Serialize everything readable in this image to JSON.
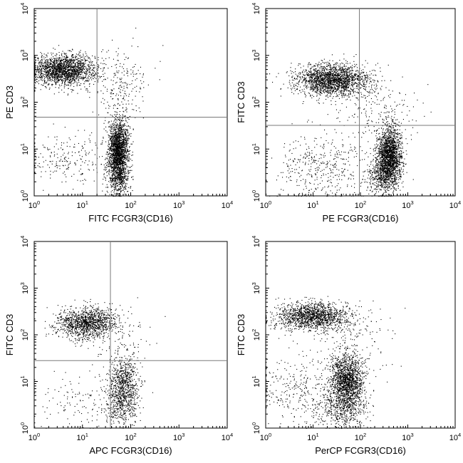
{
  "figure": {
    "panel_count": 4
  },
  "chart_data": [
    {
      "type": "scatter",
      "title": "",
      "xlabel": "FITC FCGR3(CD16)",
      "ylabel": "PE CD3",
      "xscale": "log",
      "yscale": "log",
      "xlim": [
        1,
        10000
      ],
      "ylim": [
        1,
        10000
      ],
      "x_ticks": [
        1,
        10,
        100,
        1000,
        10000
      ],
      "y_ticks": [
        1,
        10,
        100,
        1000,
        10000
      ],
      "x_tick_labels": [
        {
          "base": "10",
          "exp": "0"
        },
        {
          "base": "10",
          "exp": "1"
        },
        {
          "base": "10",
          "exp": "2"
        },
        {
          "base": "10",
          "exp": "3"
        },
        {
          "base": "10",
          "exp": "4"
        }
      ],
      "y_tick_labels": [
        {
          "base": "10",
          "exp": "0"
        },
        {
          "base": "10",
          "exp": "1"
        },
        {
          "base": "10",
          "exp": "2"
        },
        {
          "base": "10",
          "exp": "3"
        },
        {
          "base": "10",
          "exp": "4"
        }
      ],
      "gate": {
        "x": 20,
        "y": 48
      },
      "grid": false,
      "legend": "none",
      "point_color": "#000000",
      "populations": [
        {
          "center": [
            4,
            500
          ],
          "spread": [
            0.33,
            0.16
          ],
          "points": 1900
        },
        {
          "center": [
            55,
            10
          ],
          "spread": [
            0.1,
            0.3
          ],
          "points": 1800
        },
        {
          "center": [
            55,
            2.5
          ],
          "spread": [
            0.12,
            0.22
          ],
          "points": 500
        },
        {
          "center": [
            5,
            6
          ],
          "spread": [
            0.45,
            0.3
          ],
          "points": 230
        },
        {
          "center": [
            60,
            200
          ],
          "spread": [
            0.3,
            0.45
          ],
          "points": 260
        }
      ]
    },
    {
      "type": "scatter",
      "title": "",
      "xlabel": "PE FCGR3(CD16)",
      "ylabel": "FITC CD3",
      "xscale": "log",
      "yscale": "log",
      "xlim": [
        1,
        10000
      ],
      "ylim": [
        1,
        10000
      ],
      "x_ticks": [
        1,
        10,
        100,
        1000,
        10000
      ],
      "y_ticks": [
        1,
        10,
        100,
        1000,
        10000
      ],
      "x_tick_labels": [
        {
          "base": "10",
          "exp": "0"
        },
        {
          "base": "10",
          "exp": "1"
        },
        {
          "base": "10",
          "exp": "2"
        },
        {
          "base": "10",
          "exp": "3"
        },
        {
          "base": "10",
          "exp": "4"
        }
      ],
      "y_tick_labels": [
        {
          "base": "10",
          "exp": "0"
        },
        {
          "base": "10",
          "exp": "1"
        },
        {
          "base": "10",
          "exp": "2"
        },
        {
          "base": "10",
          "exp": "3"
        },
        {
          "base": "10",
          "exp": "4"
        }
      ],
      "gate": {
        "x": 95,
        "y": 32
      },
      "grid": false,
      "legend": "none",
      "point_color": "#000000",
      "populations": [
        {
          "center": [
            25,
            300
          ],
          "spread": [
            0.38,
            0.17
          ],
          "points": 2000
        },
        {
          "center": [
            400,
            7
          ],
          "spread": [
            0.13,
            0.3
          ],
          "points": 1800
        },
        {
          "center": [
            300,
            2.5
          ],
          "spread": [
            0.2,
            0.2
          ],
          "points": 450
        },
        {
          "center": [
            15,
            4
          ],
          "spread": [
            0.5,
            0.35
          ],
          "points": 400
        },
        {
          "center": [
            200,
            60
          ],
          "spread": [
            0.5,
            0.45
          ],
          "points": 220
        }
      ]
    },
    {
      "type": "scatter",
      "title": "",
      "xlabel": "APC FCGR3(CD16)",
      "ylabel": "FITC CD3",
      "xscale": "log",
      "yscale": "log",
      "xlim": [
        1,
        10000
      ],
      "ylim": [
        1,
        10000
      ],
      "x_ticks": [
        1,
        10,
        100,
        1000,
        10000
      ],
      "y_ticks": [
        1,
        10,
        100,
        1000,
        10000
      ],
      "x_tick_labels": [
        {
          "base": "10",
          "exp": "0"
        },
        {
          "base": "10",
          "exp": "1"
        },
        {
          "base": "10",
          "exp": "2"
        },
        {
          "base": "10",
          "exp": "3"
        },
        {
          "base": "10",
          "exp": "4"
        }
      ],
      "y_tick_labels": [
        {
          "base": "10",
          "exp": "0"
        },
        {
          "base": "10",
          "exp": "1"
        },
        {
          "base": "10",
          "exp": "2"
        },
        {
          "base": "10",
          "exp": "3"
        },
        {
          "base": "10",
          "exp": "4"
        }
      ],
      "gate": {
        "x": 38,
        "y": 28
      },
      "grid": false,
      "legend": "none",
      "point_color": "#000000",
      "populations": [
        {
          "center": [
            12,
            180
          ],
          "spread": [
            0.33,
            0.17
          ],
          "points": 1300
        },
        {
          "center": [
            70,
            8
          ],
          "spread": [
            0.15,
            0.3
          ],
          "points": 750
        },
        {
          "center": [
            60,
            2.5
          ],
          "spread": [
            0.18,
            0.2
          ],
          "points": 220
        },
        {
          "center": [
            8,
            4
          ],
          "spread": [
            0.45,
            0.3
          ],
          "points": 120
        },
        {
          "center": [
            60,
            40
          ],
          "spread": [
            0.3,
            0.45
          ],
          "points": 130
        }
      ]
    },
    {
      "type": "scatter",
      "title": "",
      "xlabel": "PerCP FCGR3(CD16)",
      "ylabel": "FITC CD3",
      "xscale": "log",
      "yscale": "log",
      "xlim": [
        1,
        10000
      ],
      "ylim": [
        1,
        10000
      ],
      "x_ticks": [
        1,
        10,
        100,
        1000,
        10000
      ],
      "y_ticks": [
        1,
        10,
        100,
        1000,
        10000
      ],
      "x_tick_labels": [
        {
          "base": "10",
          "exp": "0"
        },
        {
          "base": "10",
          "exp": "1"
        },
        {
          "base": "10",
          "exp": "2"
        },
        {
          "base": "10",
          "exp": "3"
        },
        {
          "base": "10",
          "exp": "4"
        }
      ],
      "y_tick_labels": [
        {
          "base": "10",
          "exp": "0"
        },
        {
          "base": "10",
          "exp": "1"
        },
        {
          "base": "10",
          "exp": "2"
        },
        {
          "base": "10",
          "exp": "3"
        },
        {
          "base": "10",
          "exp": "4"
        }
      ],
      "gate": null,
      "grid": false,
      "legend": "none",
      "point_color": "#000000",
      "populations": [
        {
          "center": [
            10,
            250
          ],
          "spread": [
            0.4,
            0.15
          ],
          "points": 1500
        },
        {
          "center": [
            50,
            10
          ],
          "spread": [
            0.18,
            0.3
          ],
          "points": 1600
        },
        {
          "center": [
            40,
            2.5
          ],
          "spread": [
            0.3,
            0.2
          ],
          "points": 400
        },
        {
          "center": [
            5,
            8
          ],
          "spread": [
            0.5,
            0.35
          ],
          "points": 300
        },
        {
          "center": [
            80,
            80
          ],
          "spread": [
            0.4,
            0.4
          ],
          "points": 150
        }
      ]
    }
  ]
}
